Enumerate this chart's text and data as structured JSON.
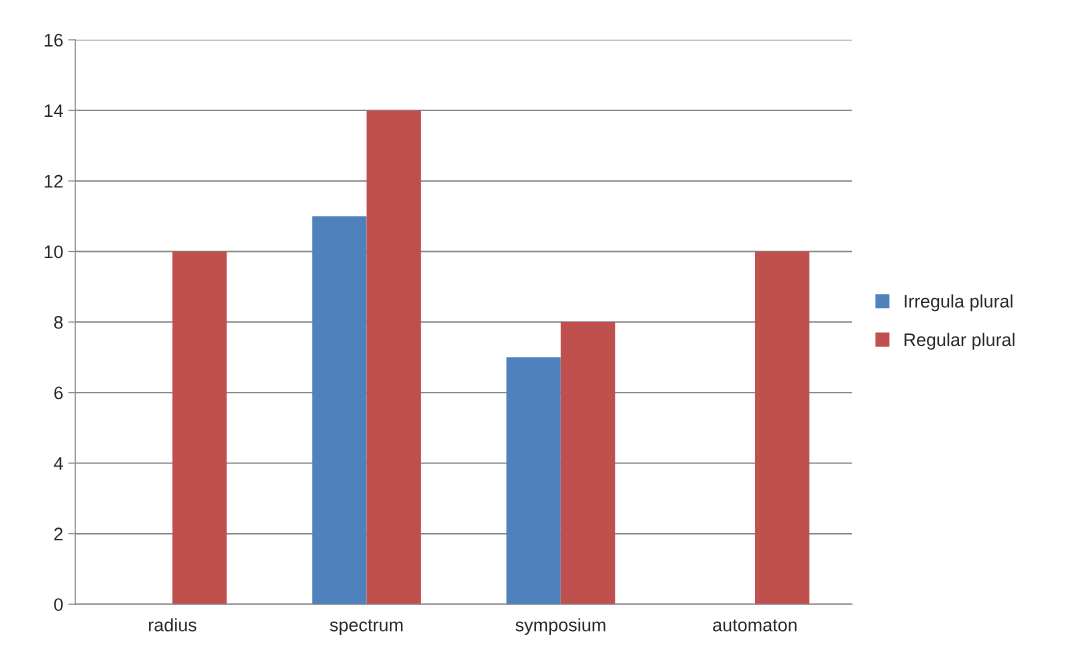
{
  "chart_data": {
    "type": "bar",
    "categories": [
      "radius",
      "spectrum",
      "symposium",
      "automaton"
    ],
    "series": [
      {
        "name": "Irregula plural",
        "color": "#4f81bd",
        "values": [
          0,
          11,
          7,
          0
        ]
      },
      {
        "name": "Regular plural",
        "color": "#c0504d",
        "values": [
          10,
          14,
          8,
          10
        ]
      }
    ],
    "ylim": [
      0,
      16
    ],
    "yticks": [
      0,
      2,
      4,
      6,
      8,
      10,
      12,
      14,
      16
    ],
    "grid": "y",
    "legend": "right"
  }
}
